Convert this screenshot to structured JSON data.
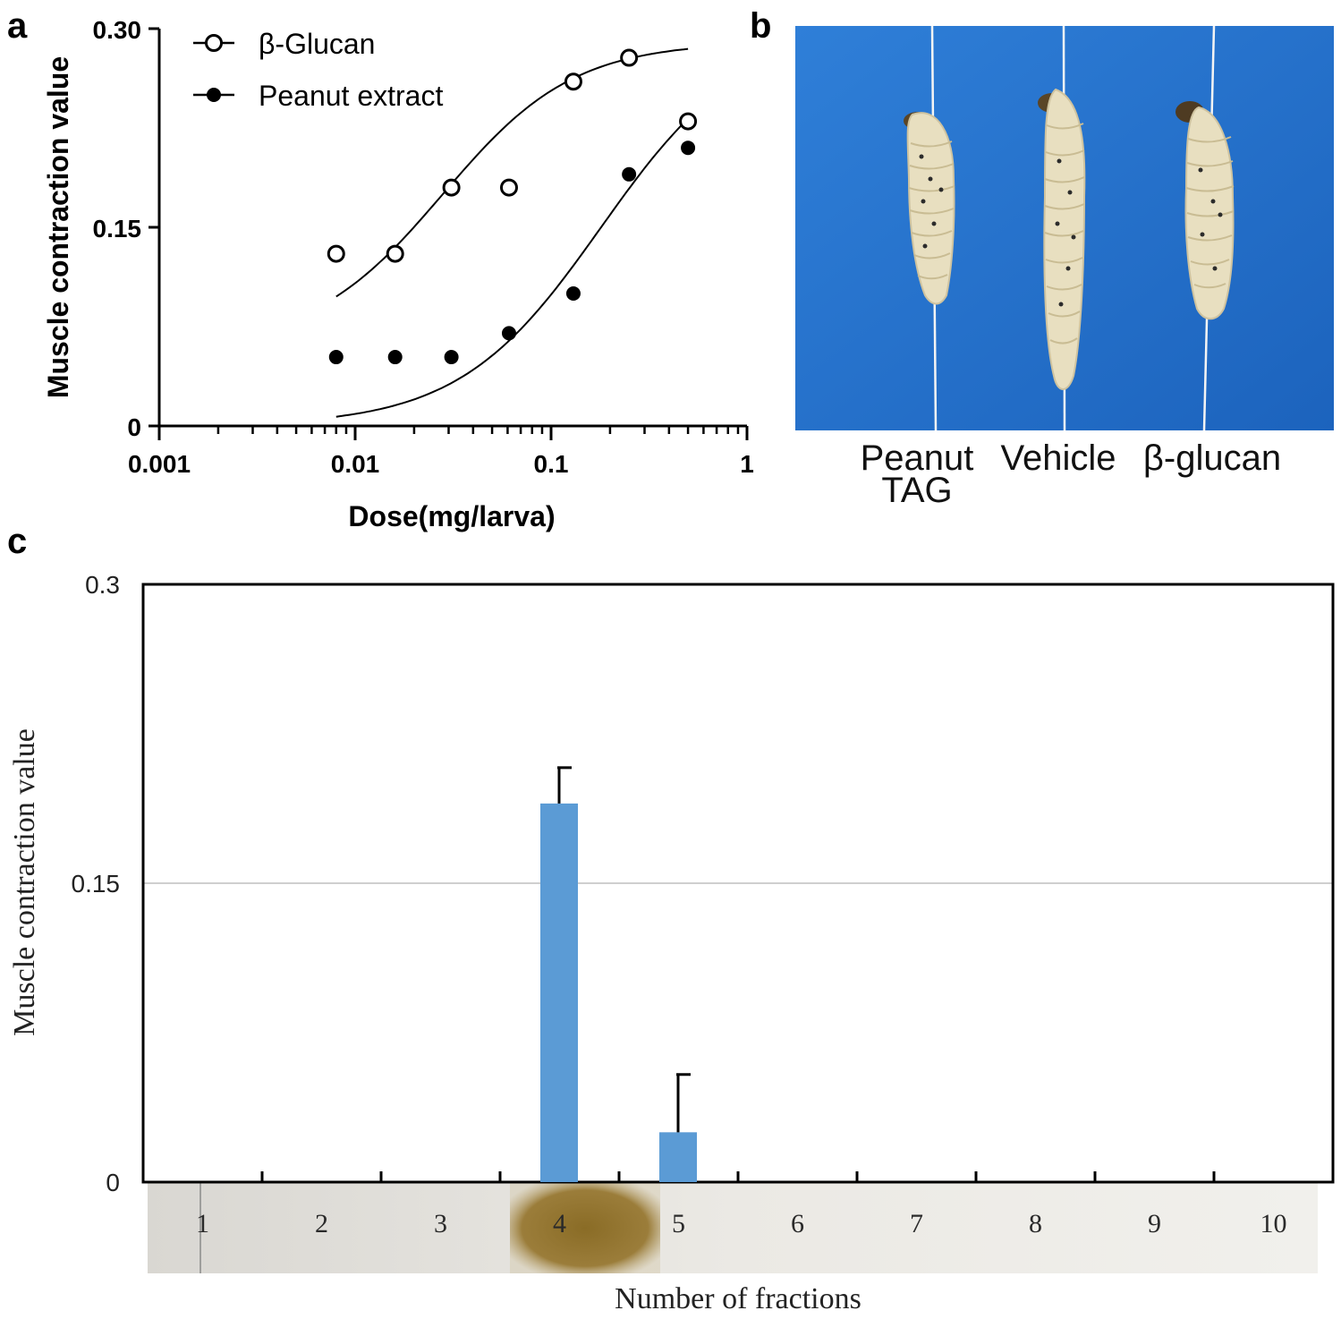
{
  "panels": {
    "a_label": "a",
    "b_label": "b",
    "c_label": "c"
  },
  "chart_data": [
    {
      "type": "scatter",
      "panel": "a",
      "title": "",
      "xlabel": "Dose(mg/larva)",
      "ylabel": "Muscle contraction value",
      "x_scale": "log",
      "xlim": [
        0.001,
        1
      ],
      "ylim": [
        0,
        0.3
      ],
      "x_tick_labels": [
        "0.001",
        "0.01",
        "0.1",
        "1"
      ],
      "x_tick_values": [
        0.001,
        0.01,
        0.1,
        1
      ],
      "y_tick_labels": [
        "0",
        "0.15",
        "0.30"
      ],
      "y_tick_values": [
        0,
        0.15,
        0.3
      ],
      "legend_position": "top-left",
      "series": [
        {
          "name": "β-Glucan",
          "marker": "open-circle",
          "points": [
            {
              "x": 0.008,
              "y": 0.13
            },
            {
              "x": 0.016,
              "y": 0.13
            },
            {
              "x": 0.031,
              "y": 0.18
            },
            {
              "x": 0.061,
              "y": 0.18
            },
            {
              "x": 0.13,
              "y": 0.26
            },
            {
              "x": 0.25,
              "y": 0.278
            },
            {
              "x": 0.5,
              "y": 0.23
            }
          ],
          "fit": {
            "bottom": 0.06,
            "top": 0.29,
            "ec50": 0.028,
            "hill": 1.3,
            "x_range": [
              0.008,
              0.5
            ]
          }
        },
        {
          "name": "Peanut extract",
          "marker": "filled-circle",
          "points": [
            {
              "x": 0.008,
              "y": 0.052
            },
            {
              "x": 0.016,
              "y": 0.052
            },
            {
              "x": 0.031,
              "y": 0.052
            },
            {
              "x": 0.061,
              "y": 0.07
            },
            {
              "x": 0.13,
              "y": 0.1
            },
            {
              "x": 0.25,
              "y": 0.19
            },
            {
              "x": 0.5,
              "y": 0.21
            }
          ],
          "fit": {
            "bottom": 0.0,
            "top": 0.3,
            "ec50": 0.18,
            "hill": 1.2,
            "x_range": [
              0.008,
              0.5
            ]
          }
        }
      ]
    },
    {
      "type": "bar",
      "panel": "c",
      "title": "",
      "xlabel": "Number of fractions",
      "ylabel": "Muscle contraction value",
      "ylim": [
        0,
        0.3
      ],
      "y_tick_labels": [
        "0",
        "0.15",
        "0.3"
      ],
      "y_tick_values": [
        0,
        0.15,
        0.3
      ],
      "grid": "horizontal at 0.15",
      "categories": [
        "1",
        "2",
        "3",
        "4",
        "5",
        "6",
        "7",
        "8",
        "9",
        "10"
      ],
      "values": [
        0,
        0,
        0,
        0.19,
        0.025,
        0,
        0,
        0,
        0,
        0
      ],
      "error_bars": [
        0,
        0,
        0,
        0.018,
        0.029,
        0,
        0,
        0,
        0,
        0
      ],
      "bar_color": "#5b9bd5",
      "tlc_strip_color": "#e6e4df",
      "tlc_band_color": "#8e7330"
    }
  ],
  "photo": {
    "background_color": "#1f6fcc",
    "larva_color": "#e9e1c4",
    "labels": [
      "Peanut\nTAG",
      "Vehicle",
      "β-glucan"
    ]
  }
}
